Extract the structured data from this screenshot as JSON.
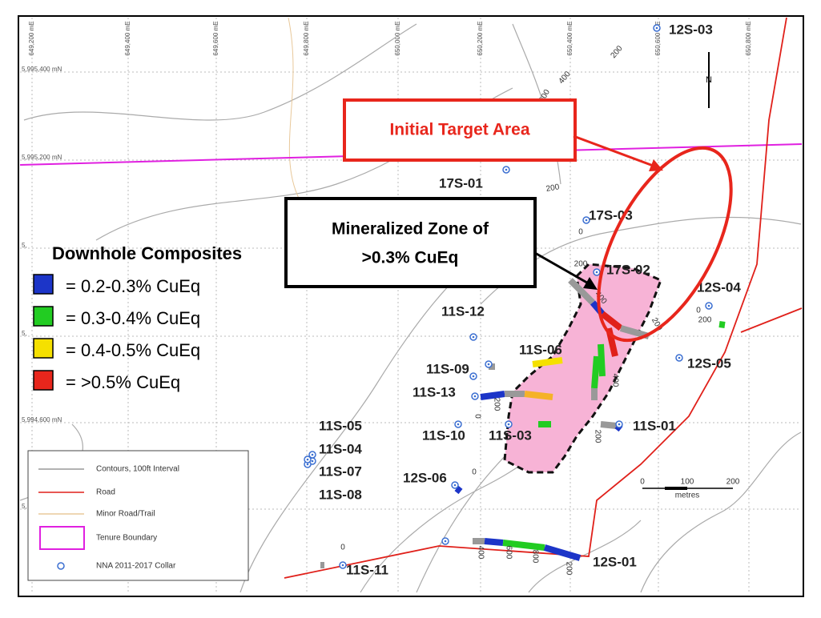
{
  "map": {
    "easting_labels": [
      "649,200 mE",
      "649,400 mE",
      "649,600 mE",
      "649,800 mE",
      "650,000 mE",
      "650,200 mE",
      "650,400 mE",
      "650,600 mE",
      "650,800 mE"
    ],
    "northing_labels": [
      "5,995,400 mN",
      "5,995,200 mN",
      "5,",
      "5,",
      "5,994,600 mN",
      "5,"
    ],
    "callouts": {
      "target": "Initial Target Area",
      "zone": [
        "Mineralized  Zone of",
        ">0.3% CuEq"
      ]
    },
    "composites_legend": {
      "title": "Downhole Composites",
      "items": [
        "= 0.2-0.3% CuEq",
        "= 0.3-0.4% CuEq",
        "= 0.4-0.5% CuEq",
        "= >0.5% CuEq"
      ]
    },
    "holes": [
      "12S-03",
      "17S-01",
      "17S-03",
      "17S-02",
      "12S-04",
      "11S-12",
      "11S-06",
      "11S-09",
      "11S-13",
      "12S-05",
      "11S-01",
      "11S-05",
      "11S-04",
      "11S-07",
      "11S-08",
      "11S-10",
      "11S-03",
      "12S-06",
      "11S-11",
      "12S-01"
    ],
    "depth_labels": [
      "200",
      "400",
      "600",
      "200",
      "0",
      "200",
      "400",
      "200",
      "0",
      "200",
      "0",
      "200",
      "400",
      "600",
      "800",
      "200",
      "400",
      "0",
      "200",
      "0"
    ],
    "map_legend": [
      "Contours, 100ft Interval",
      "Road",
      "Minor Road/Trail",
      "Tenure Boundary",
      "NNA 2011-2017 Collar"
    ],
    "scale": [
      "0",
      "100",
      "200",
      "metres"
    ],
    "north": "N"
  }
}
